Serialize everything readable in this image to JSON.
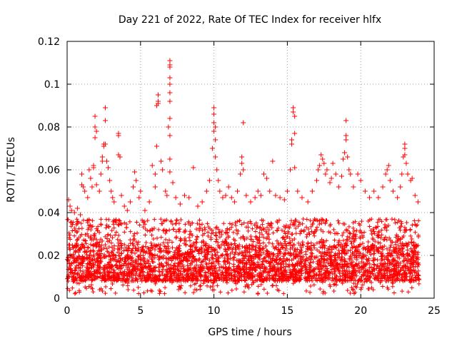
{
  "chart_data": {
    "type": "scatter",
    "title": "Day 221 of 2022, Rate Of TEC Index for receiver hlfx",
    "xlabel": "GPS time / hours",
    "ylabel": "ROTI / TECUs",
    "xlim": [
      0,
      25
    ],
    "ylim": [
      0,
      0.12
    ],
    "xticks": [
      0,
      5,
      10,
      15,
      20,
      25
    ],
    "xtick_labels": [
      "0",
      "5",
      "10",
      "15",
      "20",
      "25"
    ],
    "yticks": [
      0,
      0.02,
      0.04,
      0.06,
      0.08,
      0.1,
      0.12
    ],
    "ytick_labels": [
      "0",
      "0.02",
      "0.04",
      "0.06",
      "0.08",
      "0.1",
      "0.12"
    ],
    "grid": true,
    "marker": "+",
    "series_color": "#ff0000",
    "grid_color": "#a0a0a0",
    "baseline_band": {
      "x_range": [
        0,
        24
      ],
      "typical_range": [
        0.008,
        0.025
      ],
      "description_values": "dense bulk of points between about 0.008 and 0.025 TECU across the full day"
    },
    "series": [
      {
        "name": "ROTI",
        "points": [
          [
            0.1,
            0.046
          ],
          [
            0.2,
            0.043
          ],
          [
            0.3,
            0.041
          ],
          [
            0.5,
            0.04
          ],
          [
            0.7,
            0.042
          ],
          [
            0.9,
            0.039
          ],
          [
            1.0,
            0.058
          ],
          [
            1.0,
            0.053
          ],
          [
            1.1,
            0.052
          ],
          [
            1.2,
            0.05
          ],
          [
            1.4,
            0.047
          ],
          [
            1.5,
            0.06
          ],
          [
            1.6,
            0.056
          ],
          [
            1.7,
            0.052
          ],
          [
            1.8,
            0.061
          ],
          [
            1.8,
            0.062
          ],
          [
            1.9,
            0.075
          ],
          [
            1.9,
            0.08
          ],
          [
            1.9,
            0.085
          ],
          [
            2.0,
            0.078
          ],
          [
            2.0,
            0.053
          ],
          [
            2.2,
            0.05
          ],
          [
            2.3,
            0.058
          ],
          [
            2.4,
            0.064
          ],
          [
            2.4,
            0.066
          ],
          [
            2.5,
            0.071
          ],
          [
            2.5,
            0.072
          ],
          [
            2.6,
            0.089
          ],
          [
            2.6,
            0.083
          ],
          [
            2.6,
            0.072
          ],
          [
            2.7,
            0.064
          ],
          [
            2.8,
            0.061
          ],
          [
            2.9,
            0.055
          ],
          [
            3.0,
            0.05
          ],
          [
            3.1,
            0.047
          ],
          [
            3.2,
            0.045
          ],
          [
            3.5,
            0.076
          ],
          [
            3.5,
            0.077
          ],
          [
            3.5,
            0.067
          ],
          [
            3.6,
            0.066
          ],
          [
            3.7,
            0.048
          ],
          [
            3.9,
            0.043
          ],
          [
            4.1,
            0.041
          ],
          [
            4.3,
            0.045
          ],
          [
            4.5,
            0.052
          ],
          [
            4.6,
            0.059
          ],
          [
            4.7,
            0.055
          ],
          [
            4.9,
            0.047
          ],
          [
            5.0,
            0.05
          ],
          [
            5.3,
            0.041
          ],
          [
            5.6,
            0.045
          ],
          [
            5.8,
            0.062
          ],
          [
            6.0,
            0.058
          ],
          [
            6.0,
            0.052
          ],
          [
            6.1,
            0.071
          ],
          [
            6.1,
            0.09
          ],
          [
            6.2,
            0.091
          ],
          [
            6.2,
            0.092
          ],
          [
            6.2,
            0.095
          ],
          [
            6.4,
            0.064
          ],
          [
            6.5,
            0.06
          ],
          [
            6.7,
            0.05
          ],
          [
            6.8,
            0.048
          ],
          [
            6.9,
            0.08
          ],
          [
            7.0,
            0.111
          ],
          [
            7.0,
            0.109
          ],
          [
            7.0,
            0.108
          ],
          [
            7.0,
            0.103
          ],
          [
            7.0,
            0.1
          ],
          [
            7.0,
            0.096
          ],
          [
            7.0,
            0.092
          ],
          [
            7.0,
            0.084
          ],
          [
            7.0,
            0.076
          ],
          [
            7.0,
            0.065
          ],
          [
            7.0,
            0.059
          ],
          [
            7.2,
            0.054
          ],
          [
            7.4,
            0.047
          ],
          [
            7.7,
            0.044
          ],
          [
            8.0,
            0.048
          ],
          [
            8.3,
            0.047
          ],
          [
            8.6,
            0.061
          ],
          [
            8.9,
            0.043
          ],
          [
            9.2,
            0.045
          ],
          [
            9.5,
            0.05
          ],
          [
            9.7,
            0.055
          ],
          [
            9.9,
            0.07
          ],
          [
            10.0,
            0.082
          ],
          [
            10.0,
            0.089
          ],
          [
            10.0,
            0.086
          ],
          [
            10.0,
            0.078
          ],
          [
            10.1,
            0.08
          ],
          [
            10.1,
            0.074
          ],
          [
            10.1,
            0.066
          ],
          [
            10.2,
            0.06
          ],
          [
            10.3,
            0.055
          ],
          [
            10.4,
            0.05
          ],
          [
            10.6,
            0.047
          ],
          [
            10.8,
            0.048
          ],
          [
            11.0,
            0.052
          ],
          [
            11.2,
            0.047
          ],
          [
            11.4,
            0.045
          ],
          [
            11.6,
            0.05
          ],
          [
            11.8,
            0.058
          ],
          [
            11.9,
            0.066
          ],
          [
            11.9,
            0.063
          ],
          [
            12.0,
            0.082
          ],
          [
            12.0,
            0.06
          ],
          [
            12.2,
            0.048
          ],
          [
            12.5,
            0.045
          ],
          [
            12.8,
            0.047
          ],
          [
            13.0,
            0.05
          ],
          [
            13.2,
            0.048
          ],
          [
            13.4,
            0.058
          ],
          [
            13.6,
            0.056
          ],
          [
            13.8,
            0.05
          ],
          [
            14.0,
            0.064
          ],
          [
            14.2,
            0.048
          ],
          [
            14.5,
            0.047
          ],
          [
            14.8,
            0.046
          ],
          [
            15.0,
            0.05
          ],
          [
            15.2,
            0.06
          ],
          [
            15.3,
            0.072
          ],
          [
            15.3,
            0.074
          ],
          [
            15.4,
            0.089
          ],
          [
            15.4,
            0.087
          ],
          [
            15.5,
            0.085
          ],
          [
            15.5,
            0.077
          ],
          [
            15.5,
            0.061
          ],
          [
            15.7,
            0.05
          ],
          [
            16.0,
            0.047
          ],
          [
            16.4,
            0.045
          ],
          [
            16.7,
            0.05
          ],
          [
            17.0,
            0.055
          ],
          [
            17.1,
            0.06
          ],
          [
            17.2,
            0.062
          ],
          [
            17.3,
            0.067
          ],
          [
            17.4,
            0.065
          ],
          [
            17.5,
            0.063
          ],
          [
            17.6,
            0.058
          ],
          [
            17.7,
            0.06
          ],
          [
            17.9,
            0.054
          ],
          [
            18.0,
            0.056
          ],
          [
            18.1,
            0.063
          ],
          [
            18.3,
            0.058
          ],
          [
            18.5,
            0.052
          ],
          [
            18.7,
            0.057
          ],
          [
            18.8,
            0.065
          ],
          [
            18.9,
            0.068
          ],
          [
            19.0,
            0.074
          ],
          [
            19.0,
            0.076
          ],
          [
            19.0,
            0.083
          ],
          [
            19.1,
            0.066
          ],
          [
            19.2,
            0.06
          ],
          [
            19.3,
            0.058
          ],
          [
            19.5,
            0.052
          ],
          [
            19.8,
            0.058
          ],
          [
            20.0,
            0.055
          ],
          [
            20.3,
            0.05
          ],
          [
            20.6,
            0.047
          ],
          [
            20.9,
            0.05
          ],
          [
            21.2,
            0.047
          ],
          [
            21.5,
            0.052
          ],
          [
            21.7,
            0.058
          ],
          [
            21.8,
            0.06
          ],
          [
            21.9,
            0.062
          ],
          [
            22.0,
            0.055
          ],
          [
            22.2,
            0.05
          ],
          [
            22.5,
            0.047
          ],
          [
            22.7,
            0.052
          ],
          [
            22.8,
            0.058
          ],
          [
            22.9,
            0.066
          ],
          [
            23.0,
            0.07
          ],
          [
            23.0,
            0.072
          ],
          [
            23.0,
            0.067
          ],
          [
            23.1,
            0.063
          ],
          [
            23.2,
            0.058
          ],
          [
            23.4,
            0.055
          ],
          [
            23.5,
            0.056
          ],
          [
            23.7,
            0.048
          ],
          [
            23.9,
            0.045
          ]
        ]
      }
    ]
  }
}
